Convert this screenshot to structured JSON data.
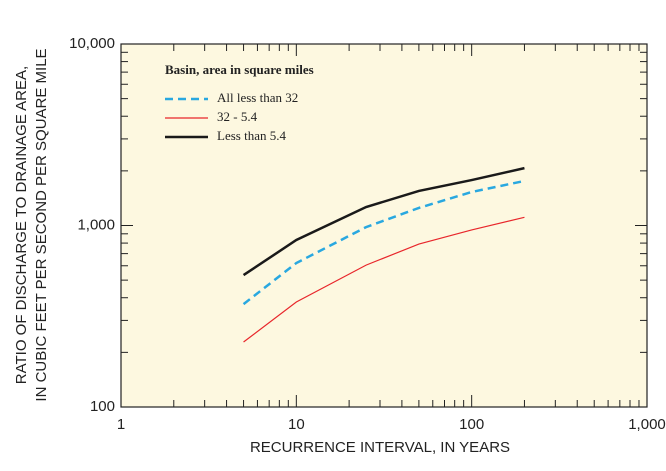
{
  "chart_data": {
    "type": "line",
    "xlabel": "RECURRENCE INTERVAL, IN YEARS",
    "ylabel": [
      "RATIO OF DISCHARGE TO DRAINAGE AREA,",
      "IN CUBIC FEET PER SECOND PER SQUARE MILE"
    ],
    "legend_title": "Basin, area in square miles",
    "legend_position": "upper left",
    "x": [
      5,
      10,
      25,
      50,
      100,
      200
    ],
    "series": [
      {
        "name": "All less than 32",
        "color": "#29a8e0",
        "dash": "dashed",
        "width": 2.5,
        "values": [
          369,
          621,
          980,
          1250,
          1530,
          1760
        ]
      },
      {
        "name": "32 - 5.4",
        "color": "#e8262b",
        "dash": "solid",
        "width": 1.2,
        "values": [
          228,
          379,
          605,
          790,
          945,
          1110
        ]
      },
      {
        "name": "Less than 5.4",
        "color": "#1a1a1a",
        "dash": "solid",
        "width": 2.5,
        "values": [
          533,
          832,
          1264,
          1550,
          1780,
          2070
        ]
      }
    ],
    "xscale": "log",
    "yscale": "log",
    "xlim": [
      1,
      1000
    ],
    "ylim": [
      100,
      10000
    ],
    "xticks": [
      1,
      10,
      100,
      {
        "value": 1000,
        "label": "1,000"
      }
    ],
    "yticks": [
      100,
      {
        "value": 1000,
        "label": "1,000"
      },
      {
        "value": 10000,
        "label": "10,000"
      }
    ],
    "xminorticks": [
      2,
      3,
      4,
      5,
      6,
      7,
      8,
      9,
      20,
      30,
      40,
      50,
      60,
      70,
      80,
      90,
      200,
      300,
      400,
      500,
      600,
      700,
      800,
      900
    ],
    "yminorticks": [
      200,
      300,
      400,
      500,
      600,
      700,
      800,
      900,
      2000,
      3000,
      4000,
      5000,
      6000,
      7000,
      8000,
      9000
    ],
    "background": "#fdf8e0"
  }
}
